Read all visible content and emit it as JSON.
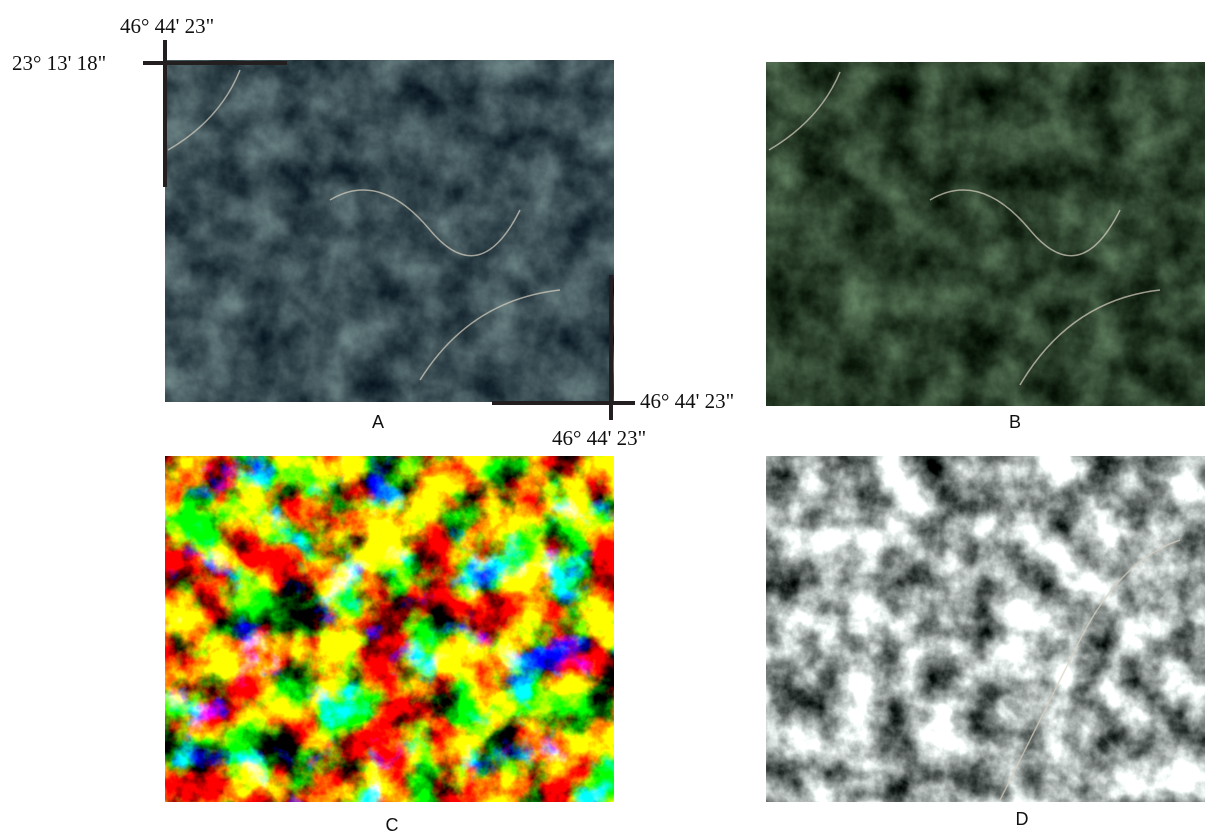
{
  "panels": [
    {
      "label": "A"
    },
    {
      "label": "B"
    },
    {
      "label": "C"
    },
    {
      "label": "D"
    }
  ],
  "coordinates": {
    "top": "46° 44' 23\"",
    "left": "23° 13' 18\"",
    "right": "46° 44' 23\"",
    "bottom": "46° 44' 23\""
  }
}
